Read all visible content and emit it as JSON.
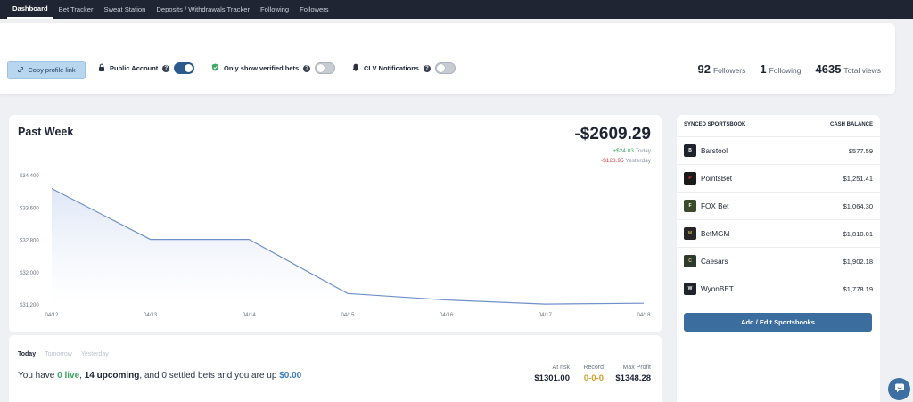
{
  "nav": {
    "items": [
      {
        "label": "Dashboard",
        "active": true
      },
      {
        "label": "Bet Tracker",
        "active": false
      },
      {
        "label": "Sweat Station",
        "active": false
      },
      {
        "label": "Deposits / Withdrawals Tracker",
        "active": false
      },
      {
        "label": "Following",
        "active": false
      },
      {
        "label": "Followers",
        "active": false
      }
    ]
  },
  "profile": {
    "copy_label": "Copy profile link",
    "public_account_label": "Public Account",
    "public_account_on": true,
    "verified_label": "Only show verified bets",
    "verified_on": false,
    "clv_label": "CLV Notifications",
    "clv_on": false,
    "help_glyph": "?",
    "followers_count": "92",
    "followers_label": "Followers",
    "following_count": "1",
    "following_label": "Following",
    "views_count": "4635",
    "views_label": "Total views"
  },
  "chart_section": {
    "title": "Past Week",
    "total": "-$2609.29",
    "today_change": "+$24.03",
    "today_label": "Today",
    "yesterday_change": "-$123.95",
    "yesterday_label": "Yesterday",
    "line_color": "#6f90c8",
    "fill_color": "#dfe7f6"
  },
  "chart_data": {
    "type": "area",
    "title": "Past Week",
    "x": [
      "04/12",
      "04/13",
      "04/14",
      "04/15",
      "04/16",
      "04/17",
      "04/18"
    ],
    "series": [
      {
        "values": [
          34080,
          32820,
          32820,
          31480,
          31320,
          31220,
          31240
        ]
      }
    ],
    "yticks": [
      "$34,400",
      "$33,600",
      "$32,800",
      "$32,000",
      "$31,200"
    ],
    "ylim": [
      31200,
      34400
    ],
    "grid": false,
    "legend": "none"
  },
  "today": {
    "tabs": [
      {
        "label": "Today",
        "active": true
      },
      {
        "label": "Tomorrow",
        "active": false
      },
      {
        "label": "Yesterday",
        "active": false
      }
    ],
    "text_a": "You have ",
    "live": "0 live",
    "text_b": ", ",
    "upcoming": "14 upcoming",
    "text_c": ", and 0 settled bets and you are up ",
    "profit": "$0.00",
    "at_risk_label": "At risk",
    "at_risk_value": "$1301.00",
    "record_label": "Record",
    "record_value": "0-0-0",
    "max_profit_label": "Max Profit",
    "max_profit_value": "$1348.28"
  },
  "sportsbooks": {
    "header_left": "SYNCED SPORTSBOOK",
    "header_right": "CASH BALANCE",
    "books": [
      {
        "name": "Barstool",
        "balance": "$577.59",
        "icon": "barstool-logo-icon"
      },
      {
        "name": "PointsBet",
        "balance": "$1,251.41",
        "icon": "pointsbet-logo-icon"
      },
      {
        "name": "FOX Bet",
        "balance": "$1,064.30",
        "icon": "foxbet-logo-icon"
      },
      {
        "name": "BetMGM",
        "balance": "$1,810.01",
        "icon": "betmgm-logo-icon"
      },
      {
        "name": "Caesars",
        "balance": "$1,902.18",
        "icon": "caesars-logo-icon"
      },
      {
        "name": "WynnBET",
        "balance": "$1,778.19",
        "icon": "wynnbet-logo-icon"
      }
    ],
    "edit_label": "Add / Edit Sportsbooks"
  }
}
